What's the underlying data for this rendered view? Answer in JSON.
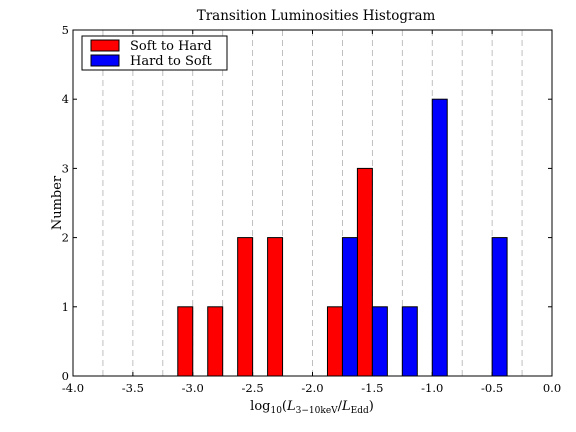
{
  "chart_data": {
    "type": "bar",
    "title": "Transition Luminosities Histogram",
    "xlabel": "log10(L3−10keV/LEdd)",
    "ylabel": "Number",
    "xlim": [
      -4.0,
      0.0
    ],
    "ylim": [
      0,
      5
    ],
    "xticks": [
      "-4.0",
      "-3.5",
      "-3.0",
      "-2.5",
      "-2.0",
      "-1.5",
      "-1.0",
      "-0.5",
      "0.0"
    ],
    "yticks": [
      "0",
      "1",
      "2",
      "3",
      "4",
      "5"
    ],
    "grid": "vertical dashed",
    "legend_position": "top-left",
    "series": [
      {
        "name": "Soft to Hard",
        "color": "#ff0000",
        "bins": [
          {
            "x0": -3.125,
            "x1": -3.0,
            "count": 1
          },
          {
            "x0": -2.875,
            "x1": -2.75,
            "count": 1
          },
          {
            "x0": -2.625,
            "x1": -2.5,
            "count": 2
          },
          {
            "x0": -2.375,
            "x1": -2.25,
            "count": 2
          },
          {
            "x0": -1.875,
            "x1": -1.75,
            "count": 1
          },
          {
            "x0": -1.625,
            "x1": -1.5,
            "count": 3
          }
        ]
      },
      {
        "name": "Hard to Soft",
        "color": "#0000ff",
        "bins": [
          {
            "x0": -1.75,
            "x1": -1.625,
            "count": 2
          },
          {
            "x0": -1.5,
            "x1": -1.375,
            "count": 1
          },
          {
            "x0": -1.25,
            "x1": -1.125,
            "count": 1
          },
          {
            "x0": -1.0,
            "x1": -0.875,
            "count": 4
          },
          {
            "x0": -0.5,
            "x1": -0.375,
            "count": 2
          }
        ]
      }
    ]
  }
}
